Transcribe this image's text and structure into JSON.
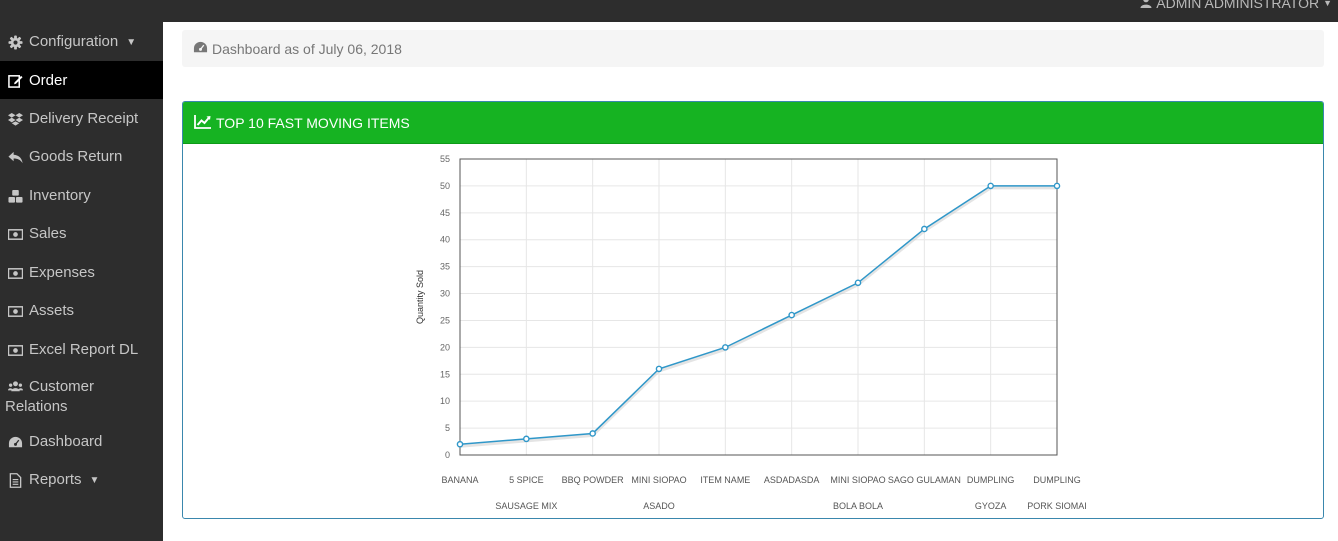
{
  "header": {
    "user_label": "ADMIN ADMINISTRATOR"
  },
  "sidebar": {
    "items": [
      {
        "label": "Configuration",
        "icon": "gear-icon",
        "dropdown": true
      },
      {
        "label": "Order",
        "icon": "edit-icon",
        "active": true
      },
      {
        "label": "Delivery Receipt",
        "icon": "dropbox-icon"
      },
      {
        "label": "Goods Return",
        "icon": "reply-icon"
      },
      {
        "label": "Inventory",
        "icon": "cubes-icon"
      },
      {
        "label": "Sales",
        "icon": "money-icon"
      },
      {
        "label": "Expenses",
        "icon": "money-icon"
      },
      {
        "label": "Assets",
        "icon": "money-icon"
      },
      {
        "label": "Excel Report DL",
        "icon": "money-icon"
      },
      {
        "label_line1": "Customer",
        "label_line2": "Relations",
        "icon": "users-icon"
      },
      {
        "label": "Dashboard",
        "icon": "dashboard-icon"
      },
      {
        "label": "Reports",
        "icon": "file-icon",
        "dropdown": true
      }
    ]
  },
  "breadcrumb": {
    "text": "Dashboard as of July 06, 2018",
    "icon": "dashboard-icon"
  },
  "panel": {
    "title": "TOP 10 FAST MOVING ITEMS",
    "icon": "line-chart-icon",
    "header_color": "#16b322",
    "border_color": "#3a87ad"
  },
  "chart_data": {
    "type": "line",
    "categories": [
      [
        "BANANA"
      ],
      [
        "5 SPICE",
        "SAUSAGE MIX"
      ],
      [
        "BBQ POWDER"
      ],
      [
        "MINI SIOPAO",
        "ASADO"
      ],
      [
        "ITEM NAME"
      ],
      [
        "ASDADASDA"
      ],
      [
        "MINI SIOPAO",
        "BOLA BOLA"
      ],
      [
        "SAGO GULAMAN"
      ],
      [
        "DUMPLING",
        "GYOZA"
      ],
      [
        "DUMPLING",
        "PORK SIOMAI"
      ]
    ],
    "series": [
      {
        "values": [
          2,
          3,
          4,
          16,
          20,
          26,
          32,
          42,
          50,
          50
        ],
        "color": "#2f97c9"
      }
    ],
    "ylabel": "Quantity Sold",
    "ylim": [
      0,
      55
    ],
    "yticks": [
      0,
      5,
      10,
      15,
      20,
      25,
      30,
      35,
      40,
      45,
      50,
      55
    ],
    "grid": true,
    "legend": "none"
  }
}
